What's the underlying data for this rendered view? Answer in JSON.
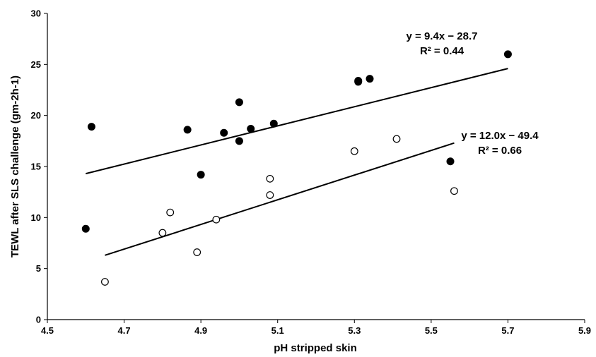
{
  "chart_data": {
    "type": "scatter",
    "xlabel": "pH stripped skin",
    "ylabel": "TEWL after SLS challenge (gm-2h-1)",
    "xlim": [
      4.5,
      5.9
    ],
    "ylim": [
      0,
      30
    ],
    "xticks": [
      "4.5",
      "4.7",
      "4.9",
      "5.1",
      "5.3",
      "5.5",
      "5.7",
      "5.9"
    ],
    "yticks": [
      "0",
      "5",
      "10",
      "15",
      "20",
      "25",
      "30"
    ],
    "grid": false,
    "legend": "none",
    "series": [
      {
        "marker": "filled-circle",
        "points": [
          {
            "x": 4.6,
            "y": 8.9
          },
          {
            "x": 4.615,
            "y": 18.9
          },
          {
            "x": 4.865,
            "y": 18.6
          },
          {
            "x": 4.9,
            "y": 14.2
          },
          {
            "x": 4.96,
            "y": 18.3
          },
          {
            "x": 5.0,
            "y": 21.3
          },
          {
            "x": 5.0,
            "y": 17.5
          },
          {
            "x": 5.03,
            "y": 18.7
          },
          {
            "x": 5.09,
            "y": 19.2
          },
          {
            "x": 5.31,
            "y": 23.3
          },
          {
            "x": 5.31,
            "y": 23.4
          },
          {
            "x": 5.34,
            "y": 23.6
          },
          {
            "x": 5.55,
            "y": 15.5
          },
          {
            "x": 5.7,
            "y": 26.0
          }
        ],
        "trendline": {
          "x": [
            4.6,
            5.7
          ],
          "y": [
            14.3,
            24.6
          ]
        },
        "equation": "y = 9.4x − 28.7",
        "r2": "R² = 0.44"
      },
      {
        "marker": "open-circle",
        "points": [
          {
            "x": 4.65,
            "y": 3.7
          },
          {
            "x": 4.8,
            "y": 8.5
          },
          {
            "x": 4.82,
            "y": 10.5
          },
          {
            "x": 4.89,
            "y": 6.6
          },
          {
            "x": 4.94,
            "y": 9.8
          },
          {
            "x": 5.08,
            "y": 13.8
          },
          {
            "x": 5.08,
            "y": 12.2
          },
          {
            "x": 5.3,
            "y": 16.5
          },
          {
            "x": 5.41,
            "y": 17.7
          },
          {
            "x": 5.56,
            "y": 12.6
          }
        ],
        "trendline": {
          "x": [
            4.65,
            5.56
          ],
          "y": [
            6.3,
            17.3
          ]
        },
        "equation": "y = 12.0x − 49.4",
        "r2": "R² = 0.66"
      }
    ]
  },
  "colors": {
    "marker": "#000000",
    "background": "#ffffff"
  }
}
